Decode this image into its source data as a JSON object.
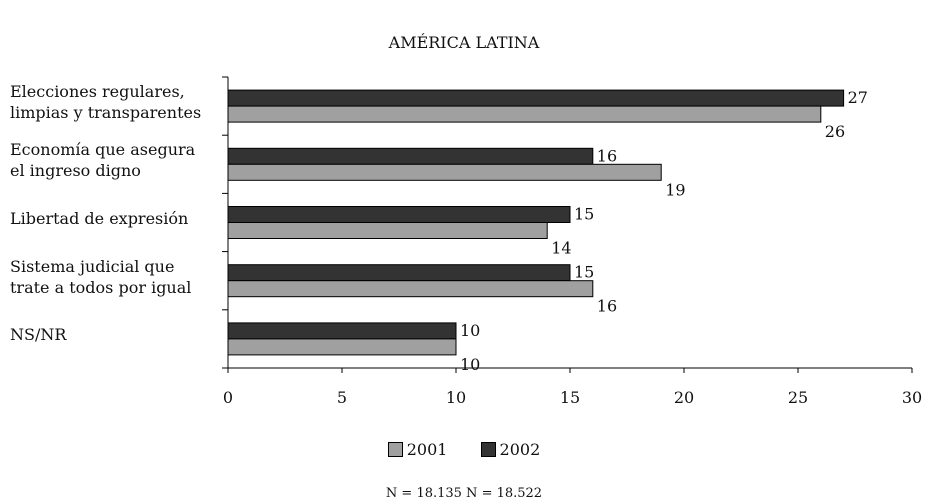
{
  "chart_data": {
    "type": "bar",
    "orientation": "horizontal",
    "title": "AMÉRICA LATINA",
    "categories": [
      [
        "Elecciones regulares,",
        "limpias y transparentes"
      ],
      [
        "Economía que asegura",
        "el ingreso digno"
      ],
      [
        "Libertad de expresión"
      ],
      [
        "Sistema judicial que",
        "trate a todos por igual"
      ],
      [
        "NS/NR"
      ]
    ],
    "series": [
      {
        "name": "2002",
        "color": "#333333",
        "values": [
          27,
          16,
          15,
          15,
          10
        ]
      },
      {
        "name": "2001",
        "color": "#a0a0a0",
        "values": [
          26,
          19,
          14,
          16,
          10
        ]
      }
    ],
    "xlim": [
      0,
      30
    ],
    "xticks": [
      0,
      5,
      10,
      15,
      20,
      25,
      30
    ],
    "grid": false,
    "legend_position": "bottom",
    "legend": [
      {
        "label": "2001",
        "color": "#a0a0a0"
      },
      {
        "label": "2002",
        "color": "#333333"
      }
    ],
    "note": "N = 18.135    N = 18.522"
  }
}
